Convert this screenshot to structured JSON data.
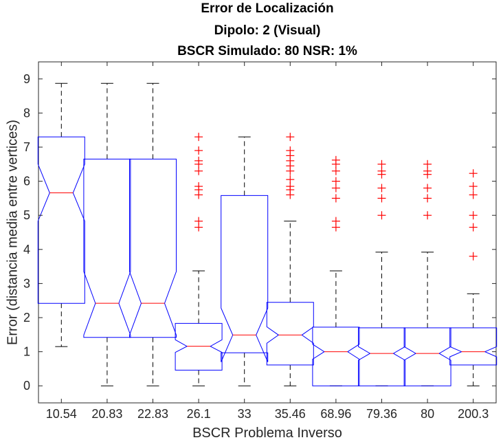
{
  "chart_data": {
    "type": "box",
    "title": [
      "Error de Localización",
      "Dipolo: 2 (Visual)",
      "BSCR Simulado: 80 NSR: 1%"
    ],
    "xlabel": "BSCR Problema Inverso",
    "ylabel": "Error (distancia media entre vertices)",
    "ylim": [
      -0.5,
      9.5
    ],
    "yticks": [
      0,
      1,
      2,
      3,
      4,
      5,
      6,
      7,
      8,
      9
    ],
    "grid": false,
    "notched": true,
    "colors": {
      "box": "#0000ff",
      "median": "#ff0000",
      "whisker": "#000000",
      "outlier": "#ff0000",
      "axis": "#262626"
    },
    "categories": [
      "10.54",
      "20.83",
      "22.83",
      "26.1",
      "33",
      "35.46",
      "68.96",
      "79.36",
      "80",
      "200.3"
    ],
    "boxes": [
      {
        "label": "10.54",
        "q1": 2.42,
        "median": 5.66,
        "q3": 7.3,
        "notch_low": 4.83,
        "notch_high": 6.5,
        "whisker_low": 1.15,
        "whisker_high": 8.87,
        "outliers": []
      },
      {
        "label": "20.83",
        "q1": 1.42,
        "median": 2.42,
        "q3": 6.65,
        "notch_low": 1.49,
        "notch_high": 3.35,
        "whisker_low": 0.0,
        "whisker_high": 8.87,
        "outliers": []
      },
      {
        "label": "22.83",
        "q1": 1.42,
        "median": 2.42,
        "q3": 6.65,
        "notch_low": 1.49,
        "notch_high": 3.35,
        "whisker_low": 0.0,
        "whisker_high": 8.87,
        "outliers": []
      },
      {
        "label": "26.1",
        "q1": 0.46,
        "median": 1.16,
        "q3": 1.83,
        "notch_low": 0.98,
        "notch_high": 1.35,
        "whisker_low": 0.0,
        "whisker_high": 3.37,
        "outliers": [
          4.65,
          4.83,
          5.6,
          5.75,
          5.85,
          6.3,
          6.5,
          6.6,
          6.9,
          7.3
        ]
      },
      {
        "label": "33",
        "q1": 0.97,
        "median": 1.49,
        "q3": 5.58,
        "notch_low": 0.7,
        "notch_high": 2.28,
        "whisker_low": 0.0,
        "whisker_high": 7.3,
        "outliers": []
      },
      {
        "label": "35.46",
        "q1": 0.61,
        "median": 1.49,
        "q3": 2.45,
        "notch_low": 1.25,
        "notch_high": 1.73,
        "whisker_low": 0.0,
        "whisker_high": 4.83,
        "outliers": [
          5.6,
          5.75,
          5.85,
          6.05,
          6.3,
          6.45,
          6.6,
          6.75,
          6.9,
          7.3
        ]
      },
      {
        "label": "68.96",
        "q1": 0.0,
        "median": 1.0,
        "q3": 1.72,
        "notch_low": 0.78,
        "notch_high": 1.22,
        "whisker_low": 0.0,
        "whisker_high": 3.37,
        "outliers": [
          4.65,
          4.83,
          5.5,
          5.8,
          6.0,
          6.3,
          6.5,
          6.62
        ]
      },
      {
        "label": "79.36",
        "q1": 0.0,
        "median": 0.95,
        "q3": 1.7,
        "notch_low": 0.75,
        "notch_high": 1.15,
        "whisker_low": 0.0,
        "whisker_high": 3.92,
        "outliers": [
          5.0,
          5.5,
          5.8,
          6.2,
          6.3,
          6.5
        ]
      },
      {
        "label": "80",
        "q1": 0.0,
        "median": 0.95,
        "q3": 1.7,
        "notch_low": 0.75,
        "notch_high": 1.15,
        "whisker_low": 0.0,
        "whisker_high": 3.92,
        "outliers": [
          5.0,
          5.5,
          5.8,
          6.2,
          6.3,
          6.5
        ]
      },
      {
        "label": "200.3",
        "q1": 0.61,
        "median": 1.0,
        "q3": 1.7,
        "notch_low": 0.85,
        "notch_high": 1.15,
        "whisker_low": 0.0,
        "whisker_high": 2.7,
        "outliers": [
          3.8,
          4.65,
          5.0,
          5.6,
          5.85,
          6.23
        ]
      }
    ]
  }
}
